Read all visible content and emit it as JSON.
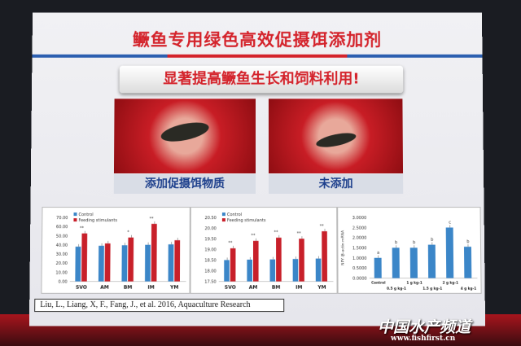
{
  "slide": {
    "title": "鳜鱼专用绿色高效促摄饵添加剂",
    "subtitle": "显著提高鳜鱼生长和饲料利用!",
    "photo_left_caption": "添加促摄饵物质",
    "photo_right_caption": "未添加",
    "citation": "Liu, L., Liang, X, F., Fang, J., et al. 2016, Aquaculture Research"
  },
  "watermark": {
    "name": "中国水产频道",
    "url": "www.fishfirst.cn"
  },
  "colors": {
    "control": "#3b86c8",
    "feeding": "#c8202a",
    "title": "#d4232b"
  },
  "chart_data": [
    {
      "type": "bar",
      "categories": [
        "SVO",
        "AM",
        "BM",
        "IM",
        "YM"
      ],
      "series": [
        {
          "name": "Control",
          "values": [
            38,
            39,
            39.5,
            40,
            40.5
          ]
        },
        {
          "name": "Feeding stimulants",
          "values": [
            52.5,
            41.5,
            48,
            63,
            45
          ]
        }
      ],
      "ylim": [
        0,
        70
      ],
      "yticks": [
        "0.00",
        "10.00",
        "20.00",
        "30.00",
        "40.00",
        "50.00",
        "60.00",
        "70.00"
      ],
      "annotations": [
        "**",
        "",
        "*",
        "**",
        ""
      ],
      "legend": "top-left"
    },
    {
      "type": "bar",
      "categories": [
        "SVO",
        "AM",
        "BM",
        "IM",
        "YM"
      ],
      "series": [
        {
          "name": "Control",
          "values": [
            18.5,
            18.52,
            18.53,
            18.55,
            18.57
          ]
        },
        {
          "name": "Feeding stimulants",
          "values": [
            19.05,
            19.4,
            19.55,
            19.5,
            19.85
          ]
        }
      ],
      "ylim": [
        17.5,
        20.5
      ],
      "yticks": [
        "17.50",
        "18.00",
        "18.50",
        "19.00",
        "19.50",
        "20.00",
        "20.50"
      ],
      "annotations": [
        "**",
        "**",
        "**",
        "**",
        "**"
      ],
      "legend": "top-left"
    },
    {
      "type": "bar",
      "ylabel": "NPY /β-actin mRNA",
      "categories": [
        "Control",
        "0.5 g kg-1",
        "1 g kg-1",
        "1.5 g kg-1",
        "2 g kg-1",
        "4 g kg-1"
      ],
      "series": [
        {
          "values": [
            1.0,
            1.5,
            1.5,
            1.65,
            2.5,
            1.55
          ]
        }
      ],
      "ylim": [
        0,
        3
      ],
      "yticks": [
        "0.0000",
        "0.5000",
        "1.0000",
        "1.5000",
        "2.0000",
        "2.5000",
        "3.0000"
      ],
      "annotations": [
        "a",
        "b",
        "b",
        "b",
        "c",
        "b"
      ]
    }
  ]
}
